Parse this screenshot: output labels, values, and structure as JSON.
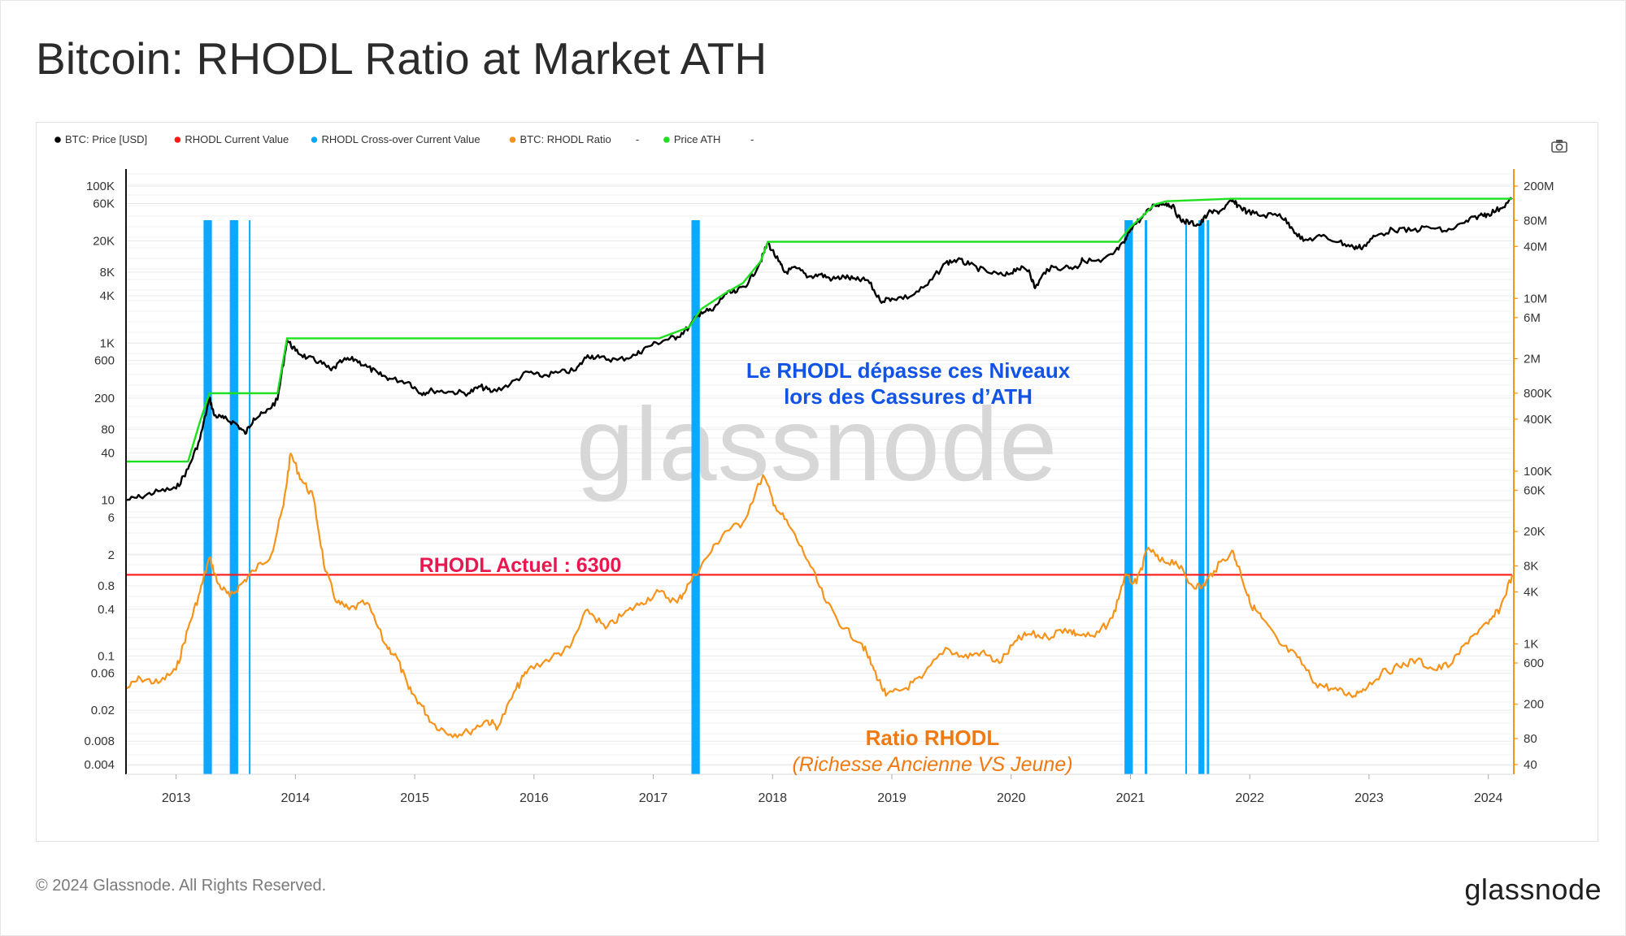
{
  "title": "Bitcoin: RHODL Ratio at Market ATH",
  "footer": {
    "copyright": "© 2024 Glassnode. All Rights Reserved.",
    "logo_text": "glassnode"
  },
  "watermark": "glassnode",
  "camera_icon": "camera-icon",
  "colors": {
    "price": "#000000",
    "rhodl_current": "#ff1a1a",
    "crossover": "#0aa8ff",
    "rhodl_ratio": "#f7931a",
    "price_ath": "#1fe01f",
    "annotation_blue": "#1153e6",
    "annotation_red": "#e8174f",
    "annotation_orange": "#f07a12",
    "right_axis_line": "#f7931a",
    "watermark": "#d7d7d7"
  },
  "legend": [
    {
      "label": "BTC: Price [USD]",
      "color": "#000000"
    },
    {
      "label": "RHODL Current Value",
      "color": "#ff1a1a"
    },
    {
      "label": "RHODL Cross-over Current Value",
      "color": "#0aa8ff"
    },
    {
      "label": "BTC: RHODL Ratio",
      "color": "#f7931a"
    },
    {
      "label": "-",
      "color": null
    },
    {
      "label": "Price ATH",
      "color": "#1fe01f"
    },
    {
      "label": "-",
      "color": null
    }
  ],
  "annotations": {
    "rhodl_exceeds_line1": "Le RHODL dépasse ces Niveaux",
    "rhodl_exceeds_line2": "lors des Cassures d’ATH",
    "rhodl_current": "RHODL Actuel : 6300",
    "ratio_title": "Ratio RHODL",
    "ratio_subtitle": "(Richesse Ancienne VS Jeune)"
  },
  "chart_data": {
    "type": "line",
    "x_axis": {
      "range": [
        2012.58,
        2024.2
      ],
      "ticks": [
        "2013",
        "2014",
        "2015",
        "2016",
        "2017",
        "2018",
        "2019",
        "2020",
        "2021",
        "2022",
        "2023",
        "2024"
      ]
    },
    "left_axis": {
      "scale": "log",
      "top_region_ticks": [
        "100K",
        "60K",
        "20K",
        "8K",
        "4K",
        "1K",
        "600",
        "200",
        "80",
        "40",
        "10",
        "6"
      ],
      "bottom_region_ticks": [
        "2",
        "0.8",
        "0.4",
        "0.1",
        "0.06",
        "0.02",
        "0.008",
        "0.004"
      ]
    },
    "right_axis": {
      "scale": "log",
      "ticks": [
        "200M",
        "80M",
        "40M",
        "10M",
        "6M",
        "2M",
        "800K",
        "400K",
        "100K",
        "60K",
        "20K",
        "8K",
        "4K",
        "1K",
        "600",
        "200",
        "80",
        "40"
      ]
    },
    "rhodl_current_value": 6300,
    "series": [
      {
        "name": "BTC: Price [USD]",
        "axis": "left",
        "points": [
          [
            2012.58,
            10
          ],
          [
            2012.7,
            11
          ],
          [
            2012.85,
            13
          ],
          [
            2013.0,
            14
          ],
          [
            2013.1,
            25
          ],
          [
            2013.2,
            60
          ],
          [
            2013.28,
            200
          ],
          [
            2013.32,
            120
          ],
          [
            2013.4,
            110
          ],
          [
            2013.5,
            95
          ],
          [
            2013.58,
            70
          ],
          [
            2013.65,
            110
          ],
          [
            2013.75,
            130
          ],
          [
            2013.85,
            190
          ],
          [
            2013.93,
            1100
          ],
          [
            2014.0,
            800
          ],
          [
            2014.1,
            650
          ],
          [
            2014.2,
            580
          ],
          [
            2014.3,
            450
          ],
          [
            2014.4,
            600
          ],
          [
            2014.5,
            620
          ],
          [
            2014.6,
            500
          ],
          [
            2014.7,
            400
          ],
          [
            2014.8,
            350
          ],
          [
            2014.95,
            320
          ],
          [
            2015.05,
            230
          ],
          [
            2015.15,
            250
          ],
          [
            2015.3,
            240
          ],
          [
            2015.45,
            230
          ],
          [
            2015.55,
            280
          ],
          [
            2015.65,
            240
          ],
          [
            2015.8,
            300
          ],
          [
            2015.95,
            430
          ],
          [
            2016.05,
            380
          ],
          [
            2016.2,
            420
          ],
          [
            2016.35,
            450
          ],
          [
            2016.45,
            700
          ],
          [
            2016.55,
            650
          ],
          [
            2016.7,
            610
          ],
          [
            2016.85,
            700
          ],
          [
            2016.95,
            900
          ],
          [
            2017.1,
            1100
          ],
          [
            2017.2,
            1200
          ],
          [
            2017.3,
            1600
          ],
          [
            2017.4,
            2500
          ],
          [
            2017.5,
            2600
          ],
          [
            2017.6,
            4200
          ],
          [
            2017.7,
            4500
          ],
          [
            2017.8,
            6000
          ],
          [
            2017.9,
            11000
          ],
          [
            2017.96,
            19000
          ],
          [
            2018.05,
            11000
          ],
          [
            2018.1,
            8000
          ],
          [
            2018.2,
            9000
          ],
          [
            2018.3,
            7000
          ],
          [
            2018.4,
            7500
          ],
          [
            2018.5,
            6500
          ],
          [
            2018.6,
            7000
          ],
          [
            2018.7,
            6400
          ],
          [
            2018.8,
            6300
          ],
          [
            2018.9,
            3500
          ],
          [
            2019.0,
            3700
          ],
          [
            2019.15,
            3900
          ],
          [
            2019.3,
            5500
          ],
          [
            2019.45,
            10500
          ],
          [
            2019.55,
            11500
          ],
          [
            2019.65,
            10000
          ],
          [
            2019.8,
            8000
          ],
          [
            2019.95,
            7200
          ],
          [
            2020.05,
            9000
          ],
          [
            2020.15,
            8500
          ],
          [
            2020.2,
            5000
          ],
          [
            2020.3,
            8800
          ],
          [
            2020.45,
            9300
          ],
          [
            2020.55,
            9200
          ],
          [
            2020.6,
            11500
          ],
          [
            2020.75,
            10800
          ],
          [
            2020.85,
            13500
          ],
          [
            2020.95,
            19000
          ],
          [
            2021.0,
            29000
          ],
          [
            2021.1,
            40000
          ],
          [
            2021.2,
            58000
          ],
          [
            2021.3,
            60000
          ],
          [
            2021.35,
            56000
          ],
          [
            2021.42,
            37000
          ],
          [
            2021.5,
            34000
          ],
          [
            2021.58,
            32000
          ],
          [
            2021.65,
            45000
          ],
          [
            2021.75,
            48000
          ],
          [
            2021.85,
            64000
          ],
          [
            2021.9,
            57000
          ],
          [
            2021.98,
            47000
          ],
          [
            2022.1,
            42000
          ],
          [
            2022.25,
            44000
          ],
          [
            2022.35,
            30000
          ],
          [
            2022.45,
            20000
          ],
          [
            2022.6,
            23000
          ],
          [
            2022.75,
            19500
          ],
          [
            2022.87,
            16500
          ],
          [
            2022.95,
            16800
          ],
          [
            2023.05,
            23000
          ],
          [
            2023.2,
            28000
          ],
          [
            2023.35,
            27000
          ],
          [
            2023.5,
            30000
          ],
          [
            2023.65,
            26500
          ],
          [
            2023.8,
            34000
          ],
          [
            2023.92,
            42000
          ],
          [
            2024.0,
            44000
          ],
          [
            2024.1,
            52000
          ],
          [
            2024.2,
            68000
          ]
        ]
      },
      {
        "name": "Price ATH",
        "axis": "left",
        "points": [
          [
            2012.58,
            31
          ],
          [
            2013.1,
            31
          ],
          [
            2013.2,
            100
          ],
          [
            2013.28,
            230
          ],
          [
            2013.85,
            230
          ],
          [
            2013.93,
            1150
          ],
          [
            2017.05,
            1150
          ],
          [
            2017.3,
            1600
          ],
          [
            2017.4,
            2700
          ],
          [
            2017.6,
            4300
          ],
          [
            2017.75,
            5800
          ],
          [
            2017.9,
            11000
          ],
          [
            2017.96,
            19500
          ],
          [
            2020.9,
            19500
          ],
          [
            2021.0,
            30000
          ],
          [
            2021.1,
            41000
          ],
          [
            2021.2,
            58000
          ],
          [
            2021.3,
            64000
          ],
          [
            2021.85,
            69000
          ],
          [
            2024.2,
            69000
          ]
        ]
      },
      {
        "name": "BTC: RHODL Ratio",
        "axis": "right",
        "points": [
          [
            2012.58,
            300
          ],
          [
            2012.7,
            400
          ],
          [
            2012.85,
            350
          ],
          [
            2013.0,
            500
          ],
          [
            2013.1,
            1500
          ],
          [
            2013.2,
            4000
          ],
          [
            2013.28,
            10000
          ],
          [
            2013.35,
            5000
          ],
          [
            2013.45,
            3500
          ],
          [
            2013.55,
            5000
          ],
          [
            2013.65,
            7000
          ],
          [
            2013.8,
            11000
          ],
          [
            2013.9,
            40000
          ],
          [
            2013.96,
            160000
          ],
          [
            2014.05,
            80000
          ],
          [
            2014.15,
            50000
          ],
          [
            2014.25,
            7000
          ],
          [
            2014.35,
            3000
          ],
          [
            2014.45,
            2500
          ],
          [
            2014.6,
            3000
          ],
          [
            2014.75,
            1000
          ],
          [
            2014.85,
            700
          ],
          [
            2014.95,
            300
          ],
          [
            2015.05,
            200
          ],
          [
            2015.15,
            120
          ],
          [
            2015.3,
            90
          ],
          [
            2015.45,
            95
          ],
          [
            2015.6,
            130
          ],
          [
            2015.7,
            110
          ],
          [
            2015.85,
            300
          ],
          [
            2015.95,
            500
          ],
          [
            2016.15,
            700
          ],
          [
            2016.3,
            900
          ],
          [
            2016.45,
            2500
          ],
          [
            2016.6,
            1500
          ],
          [
            2016.75,
            2200
          ],
          [
            2016.9,
            3000
          ],
          [
            2017.05,
            4000
          ],
          [
            2017.2,
            3000
          ],
          [
            2017.3,
            5000
          ],
          [
            2017.45,
            10000
          ],
          [
            2017.6,
            20000
          ],
          [
            2017.75,
            25000
          ],
          [
            2017.92,
            90000
          ],
          [
            2018.02,
            40000
          ],
          [
            2018.15,
            22000
          ],
          [
            2018.3,
            9000
          ],
          [
            2018.45,
            3000
          ],
          [
            2018.6,
            1500
          ],
          [
            2018.75,
            1000
          ],
          [
            2018.85,
            500
          ],
          [
            2018.95,
            250
          ],
          [
            2019.1,
            300
          ],
          [
            2019.25,
            400
          ],
          [
            2019.45,
            900
          ],
          [
            2019.6,
            700
          ],
          [
            2019.75,
            800
          ],
          [
            2019.9,
            600
          ],
          [
            2020.05,
            1100
          ],
          [
            2020.15,
            1300
          ],
          [
            2020.3,
            1200
          ],
          [
            2020.45,
            1500
          ],
          [
            2020.55,
            1300
          ],
          [
            2020.7,
            1200
          ],
          [
            2020.85,
            2000
          ],
          [
            2020.95,
            6000
          ],
          [
            2021.05,
            5000
          ],
          [
            2021.15,
            13000
          ],
          [
            2021.25,
            9000
          ],
          [
            2021.38,
            9000
          ],
          [
            2021.5,
            5000
          ],
          [
            2021.6,
            4500
          ],
          [
            2021.7,
            7000
          ],
          [
            2021.85,
            12000
          ],
          [
            2021.92,
            7000
          ],
          [
            2022.0,
            3000
          ],
          [
            2022.1,
            2000
          ],
          [
            2022.25,
            1000
          ],
          [
            2022.4,
            700
          ],
          [
            2022.55,
            350
          ],
          [
            2022.7,
            300
          ],
          [
            2022.85,
            250
          ],
          [
            2022.95,
            300
          ],
          [
            2023.1,
            450
          ],
          [
            2023.25,
            550
          ],
          [
            2023.4,
            650
          ],
          [
            2023.55,
            500
          ],
          [
            2023.7,
            600
          ],
          [
            2023.85,
            1200
          ],
          [
            2024.0,
            1700
          ],
          [
            2024.1,
            2600
          ],
          [
            2024.2,
            6300
          ]
        ]
      }
    ],
    "crossover_bands": [
      [
        2013.23,
        2013.3
      ],
      [
        2013.45,
        2013.52
      ],
      [
        2013.61,
        2013.62
      ],
      [
        2017.32,
        2017.39
      ],
      [
        2020.95,
        2021.02
      ],
      [
        2021.12,
        2021.14
      ],
      [
        2021.46,
        2021.47
      ],
      [
        2021.57,
        2021.62
      ],
      [
        2021.64,
        2021.66
      ]
    ]
  }
}
